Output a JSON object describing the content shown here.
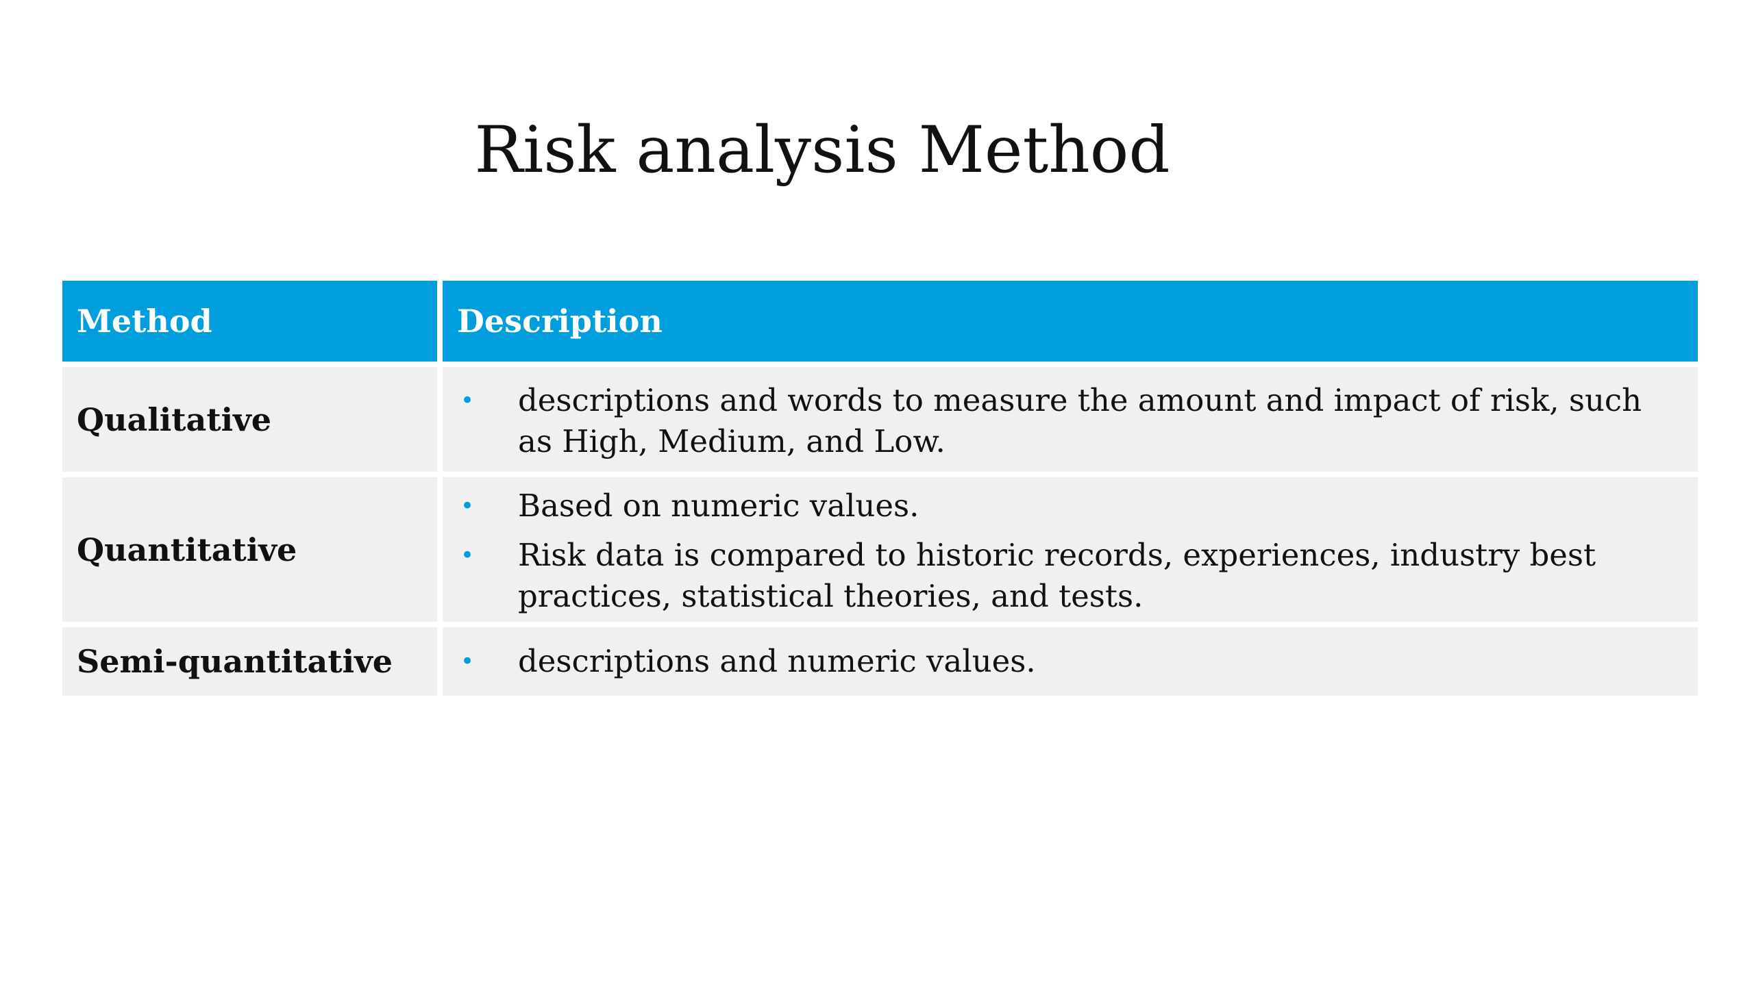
{
  "title": "Risk analysis Method",
  "accent_color": "#009EDC",
  "table": {
    "headers": [
      "Method",
      "Description"
    ],
    "rows": [
      {
        "method": "Qualitative",
        "items": [
          "descriptions and words to measure the amount and impact of risk, such as High, Medium, and Low."
        ]
      },
      {
        "method": "Quantitative",
        "items": [
          "Based on numeric values.",
          "Risk data is compared to historic records, experiences, industry best practices, statistical theories, and tests."
        ]
      },
      {
        "method": "Semi-quantitative",
        "items": [
          "descriptions and numeric values."
        ]
      }
    ]
  }
}
